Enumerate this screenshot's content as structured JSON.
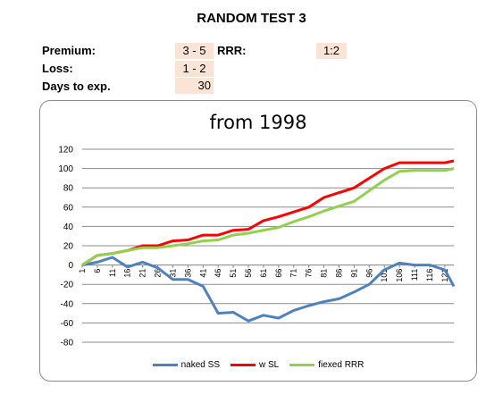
{
  "header": {
    "title": "RANDOM TEST 3",
    "premium_label": "Premium:",
    "premium_value": "3 - 5",
    "loss_label": "Loss:",
    "loss_value": "1 - 2",
    "days_label": "Days to exp.",
    "days_value": "30",
    "rrr_label": "RRR:",
    "rrr_value": "1:2"
  },
  "chart_data": {
    "type": "line",
    "title": "from 1998",
    "ylim": [
      -80,
      120
    ],
    "y_ticks": [
      120,
      100,
      80,
      60,
      40,
      20,
      0,
      -20,
      -40,
      -60,
      -80
    ],
    "x_ticks": [
      "1",
      "6",
      "11",
      "16",
      "21",
      "26",
      "31",
      "36",
      "41",
      "46",
      "51",
      "56",
      "61",
      "66",
      "71",
      "76",
      "81",
      "86",
      "91",
      "96",
      "101",
      "106",
      "111",
      "116",
      "121"
    ],
    "x": [
      1,
      6,
      11,
      16,
      21,
      26,
      31,
      36,
      41,
      46,
      51,
      56,
      61,
      66,
      71,
      76,
      81,
      86,
      91,
      96,
      101,
      106,
      111,
      116,
      121,
      124
    ],
    "grid": true,
    "legend_position": "bottom",
    "series": [
      {
        "name": "naked SS",
        "color": "#4f81bd",
        "values": [
          0,
          3,
          8,
          -2,
          3,
          -3,
          -15,
          -15,
          -22,
          -50,
          -49,
          -58,
          -52,
          -55,
          -47,
          -42,
          -38,
          -35,
          -28,
          -20,
          -5,
          2,
          0,
          0,
          -5,
          -22
        ]
      },
      {
        "name": "w SL",
        "color": "#ff0000",
        "values": [
          0,
          10,
          12,
          15,
          20,
          20,
          25,
          26,
          31,
          31,
          36,
          37,
          46,
          50,
          55,
          60,
          70,
          75,
          80,
          90,
          100,
          106,
          106,
          106,
          106,
          108
        ]
      },
      {
        "name": "fiexed RRR",
        "color": "#92d050",
        "values": [
          0,
          10,
          12,
          15,
          18,
          18,
          20,
          22,
          25,
          26,
          31,
          33,
          36,
          39,
          45,
          50,
          56,
          61,
          66,
          77,
          88,
          97,
          98,
          98,
          98,
          100
        ]
      }
    ]
  }
}
